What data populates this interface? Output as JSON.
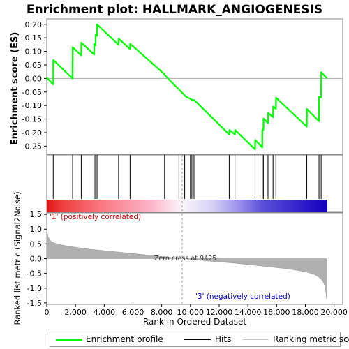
{
  "chart_data": {
    "type": "line",
    "title": "Enrichment plot: HALLMARK_ANGIOGENESIS",
    "es_panel": {
      "ylabel": "Enrichment score (ES)",
      "ylim": [
        -0.28,
        0.22
      ],
      "yticks": [
        0.2,
        0.15,
        0.1,
        0.05,
        0.0,
        -0.05,
        -0.1,
        -0.15,
        -0.2,
        -0.25
      ],
      "ytick_labels": [
        "0.20",
        "0.15",
        "0.10",
        "0.05",
        "0.00",
        "-0.05",
        "-0.10",
        "-0.15",
        "-0.20",
        "-0.25"
      ],
      "series": [
        {
          "name": "Enrichment profile",
          "color": "#00ff00",
          "x": [
            0,
            450,
            455,
            1800,
            1805,
            2400,
            2405,
            3300,
            3305,
            3400,
            3405,
            3500,
            3505,
            5000,
            5005,
            5800,
            5805,
            8200,
            8210,
            9600,
            9700,
            10000,
            10100,
            10250,
            12700,
            12710,
            13100,
            13110,
            14500,
            14510,
            15000,
            15010,
            15080,
            15090,
            15400,
            15410,
            15750,
            15760,
            15950,
            15960,
            18100,
            18110,
            18950,
            18960,
            19100,
            19110,
            19500
          ],
          "y": [
            0.003,
            -0.022,
            0.068,
            0.0,
            0.115,
            0.085,
            0.132,
            0.088,
            0.127,
            0.122,
            0.163,
            0.157,
            0.199,
            0.124,
            0.147,
            0.108,
            0.128,
            0.015,
            0.012,
            -0.062,
            -0.068,
            -0.075,
            -0.08,
            -0.079,
            -0.207,
            -0.19,
            -0.207,
            -0.19,
            -0.262,
            -0.227,
            -0.255,
            -0.19,
            -0.19,
            -0.148,
            -0.165,
            -0.127,
            -0.143,
            -0.104,
            -0.112,
            -0.071,
            -0.178,
            -0.113,
            -0.158,
            -0.068,
            -0.07,
            0.023,
            0.0
          ]
        }
      ]
    },
    "hits_panel": {
      "series_name": "Hits",
      "hit_positions": [
        450,
        1800,
        2400,
        3300,
        3400,
        3500,
        5000,
        5800,
        8200,
        9200,
        9600,
        10000,
        10100,
        10250,
        12700,
        13100,
        14500,
        15000,
        15080,
        15400,
        15750,
        15950,
        18100,
        18950,
        19100
      ]
    },
    "ranking_panel": {
      "series_name": "Ranking metric scores",
      "ylabel": "Ranked list metric (Signal2Noise)",
      "xlabel": "Rank in Ordered Dataset",
      "xlim": [
        0,
        20600
      ],
      "ylim": [
        -1.55,
        1.55
      ],
      "xticks": [
        0,
        2000,
        4000,
        6000,
        8000,
        10000,
        12000,
        14000,
        16000,
        18000,
        20000
      ],
      "xtick_labels": [
        "0",
        "2,000",
        "4,000",
        "6,000",
        "8,000",
        "10,000",
        "12,000",
        "14,000",
        "16,000",
        "18,000",
        "20,000"
      ],
      "yticks": [
        1.5,
        1.0,
        0.5,
        0.0,
        -0.5,
        -1.0,
        -1.5
      ],
      "ytick_labels": [
        "1.5",
        "1.0",
        "0.5",
        "0.0",
        "-0.5",
        "-1.0",
        "-1.5"
      ],
      "n_genes": 19500,
      "zero_cross": 9425,
      "metric_curve": {
        "rank": [
          0,
          30,
          100,
          300,
          700,
          1500,
          3000,
          5000,
          7000,
          9425,
          11000,
          13000,
          15000,
          16500,
          17500,
          18200,
          18700,
          19000,
          19200,
          19350,
          19450,
          19500
        ],
        "value": [
          1.15,
          0.9,
          0.72,
          0.58,
          0.5,
          0.42,
          0.32,
          0.22,
          0.12,
          0.0,
          -0.07,
          -0.15,
          -0.25,
          -0.33,
          -0.4,
          -0.47,
          -0.55,
          -0.65,
          -0.75,
          -0.9,
          -1.2,
          -1.45
        ]
      },
      "annotations": {
        "pos_label": "'1' (positively correlated)",
        "neg_label": "'3' (negatively correlated)",
        "zero_label": "Zero cross at 9425"
      }
    },
    "colors": {
      "es_line": "#00ff00",
      "hit_line": "#000000",
      "metric_fill": "#b0b0b0",
      "pos_label": "#cc0000",
      "neg_label": "#0000cc"
    },
    "legend": {
      "items": [
        "Enrichment profile",
        "Hits",
        "Ranking metric scores"
      ]
    }
  }
}
